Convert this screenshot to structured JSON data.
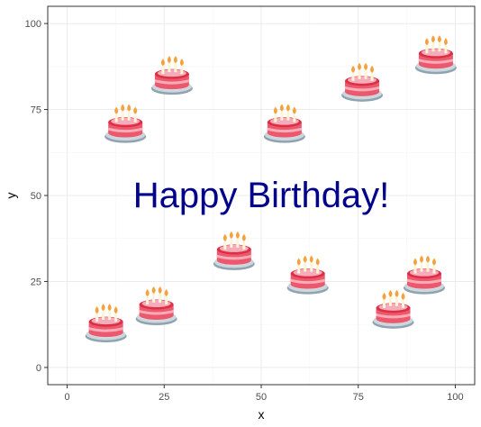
{
  "chart_data": {
    "type": "scatter",
    "xlabel": "x",
    "ylabel": "y",
    "xlim": [
      -5,
      105
    ],
    "ylim": [
      -5,
      105
    ],
    "x_ticks": [
      0,
      25,
      50,
      75,
      100
    ],
    "y_ticks": [
      0,
      25,
      50,
      75,
      100
    ],
    "grid": true,
    "marker_icon": "birthday-cake-icon",
    "points": [
      {
        "x": 10,
        "y": 12
      },
      {
        "x": 23,
        "y": 17
      },
      {
        "x": 15,
        "y": 70
      },
      {
        "x": 27,
        "y": 84
      },
      {
        "x": 43,
        "y": 33
      },
      {
        "x": 56,
        "y": 70
      },
      {
        "x": 62,
        "y": 26
      },
      {
        "x": 76,
        "y": 82
      },
      {
        "x": 84,
        "y": 16
      },
      {
        "x": 92,
        "y": 26
      },
      {
        "x": 95,
        "y": 90
      }
    ],
    "annotation": {
      "text": "Happy Birthday!",
      "x": 50,
      "y": 50,
      "color": "#00008B"
    }
  },
  "colors": {
    "panel_border": "#333333",
    "grid_major": "#ebebeb",
    "grid_minor": "#f5f5f5",
    "tick_text": "#4d4d4d"
  }
}
